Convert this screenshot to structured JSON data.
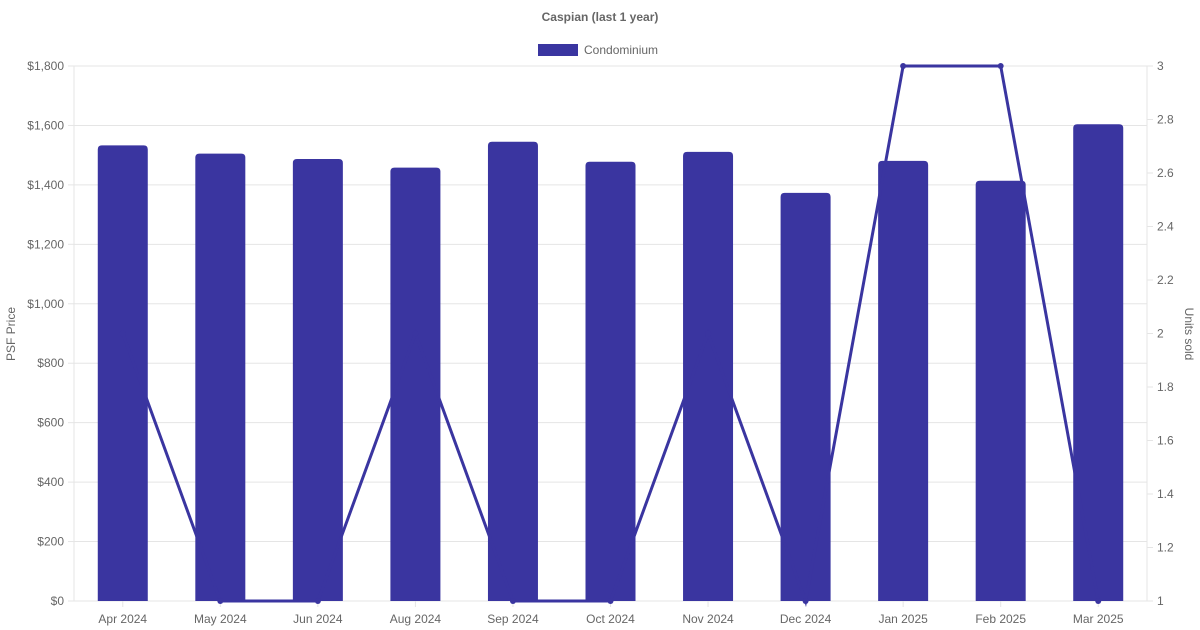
{
  "chart_data": {
    "type": "bar",
    "title": "Caspian (last 1 year)",
    "categories": [
      "Apr 2024",
      "May 2024",
      "Jun 2024",
      "Aug 2024",
      "Sep 2024",
      "Oct 2024",
      "Nov 2024",
      "Dec 2024",
      "Jan 2025",
      "Feb 2025",
      "Mar 2025"
    ],
    "series": [
      {
        "name": "Condominium",
        "type": "bar",
        "axis": "left",
        "values": [
          1533,
          1505,
          1487,
          1458,
          1545,
          1478,
          1511,
          1373,
          1481,
          1414,
          1604
        ]
      },
      {
        "type": "line",
        "axis": "right",
        "values": [
          2,
          1,
          1,
          2,
          1,
          1,
          2,
          1,
          3,
          3,
          1
        ]
      }
    ],
    "ylabel": "PSF Price",
    "y2label": "Units sold",
    "ylim": [
      0,
      1800
    ],
    "y2lim": [
      1,
      3
    ],
    "yticks": [
      "$0",
      "$200",
      "$400",
      "$600",
      "$800",
      "$1,000",
      "$1,200",
      "$1,400",
      "$1,600",
      "$1,800"
    ],
    "y2ticks": [
      "1",
      "1.2",
      "1.4",
      "1.6",
      "1.8",
      "2",
      "2.2",
      "2.4",
      "2.6",
      "2.8",
      "3"
    ],
    "grid": true,
    "legend": "top",
    "color": "#3a35a0"
  }
}
